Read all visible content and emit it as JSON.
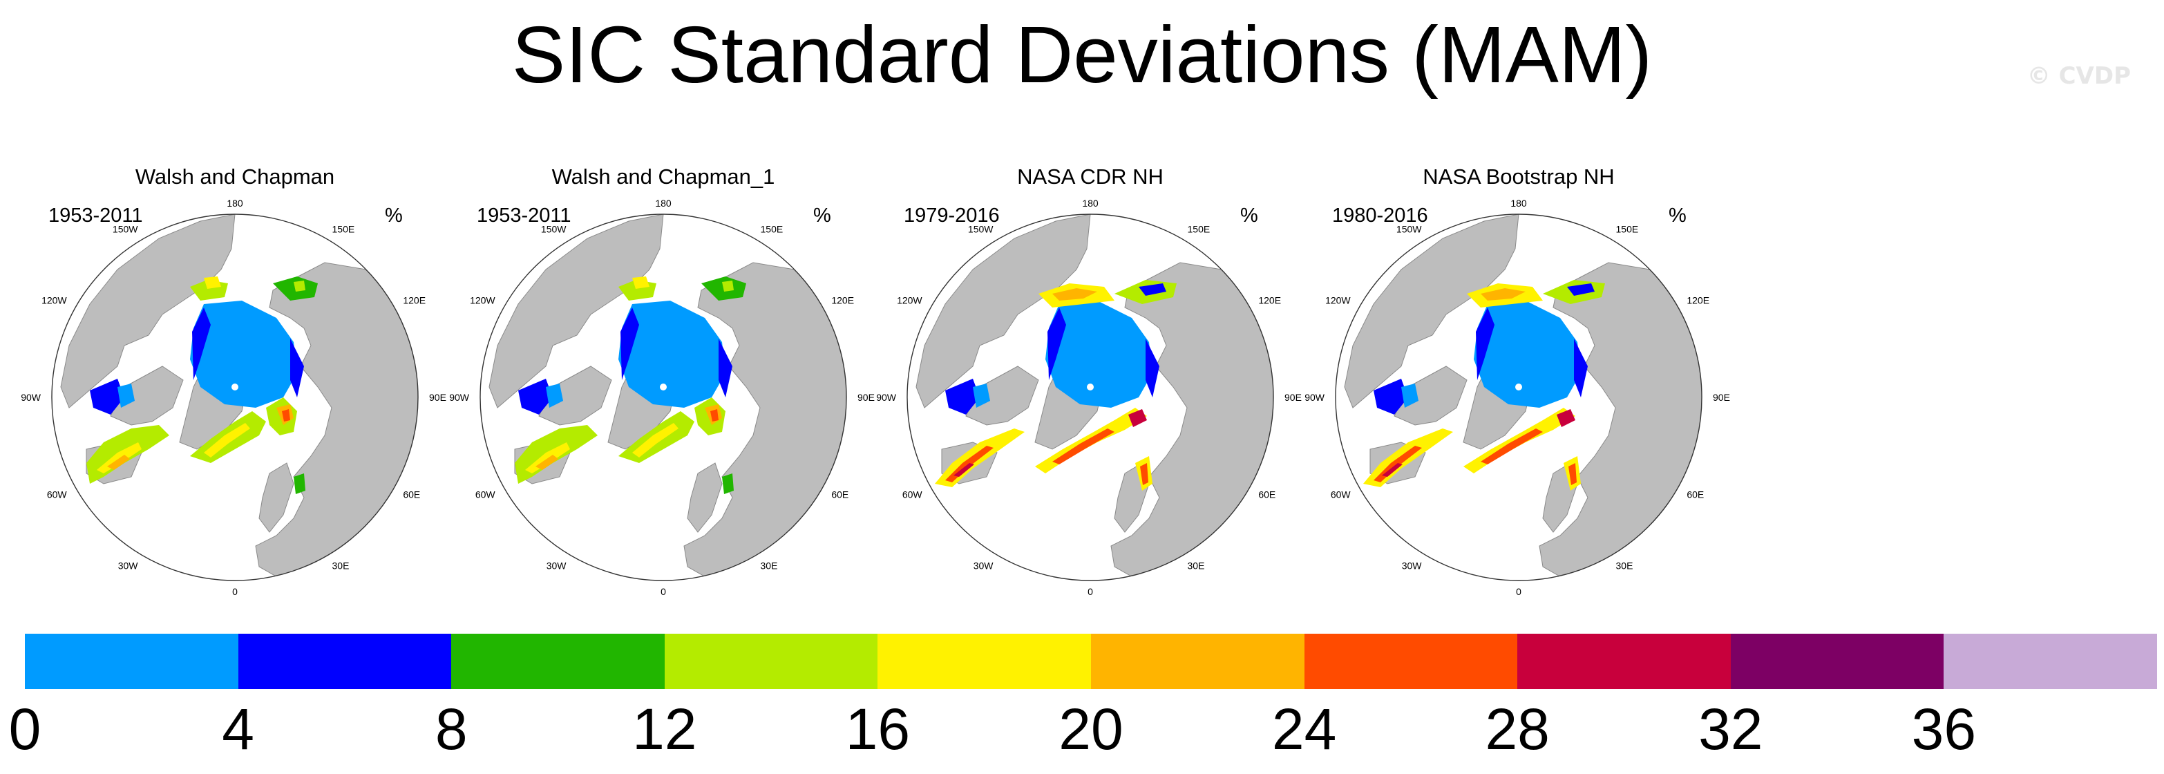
{
  "title": "SIC Standard Deviations (MAM)",
  "watermark": "© CVDP",
  "panels": [
    {
      "title": "Walsh and Chapman",
      "period": "1953-2011",
      "unit": "%",
      "style": "wc"
    },
    {
      "title": "Walsh and Chapman_1",
      "period": "1953-2011",
      "unit": "%",
      "style": "wc"
    },
    {
      "title": "NASA CDR NH",
      "period": "1979-2016",
      "unit": "%",
      "style": "sat"
    },
    {
      "title": "NASA Bootstrap NH",
      "period": "1980-2016",
      "unit": "%",
      "style": "sat"
    }
  ],
  "longitude_labels": [
    "180",
    "150E",
    "120E",
    "90E",
    "60E",
    "30E",
    "0",
    "30W",
    "60W",
    "90W",
    "120W",
    "150W"
  ],
  "colorbar": {
    "colors": [
      "#009bff",
      "#0000ff",
      "#21b600",
      "#b4eb00",
      "#fff200",
      "#ffb400",
      "#ff4b00",
      "#c8003c",
      "#7d0064",
      "#c8aad7"
    ],
    "tick_labels": [
      "0",
      "4",
      "8",
      "12",
      "16",
      "20",
      "24",
      "28",
      "32",
      "36"
    ]
  },
  "map_colors": {
    "land": "#bdbdbd",
    "ocean": "#ffffff",
    "outline": "#333333"
  }
}
